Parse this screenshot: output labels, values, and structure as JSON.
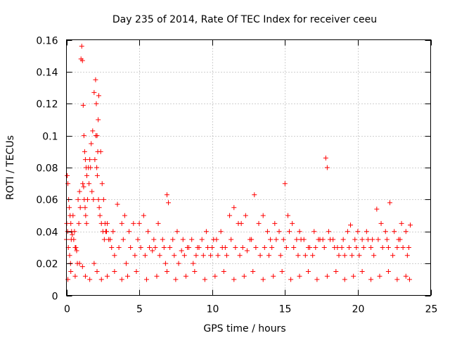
{
  "chart_data": {
    "type": "scatter",
    "title": "Day 235 of 2014, Rate Of TEC Index for receiver ceeu",
    "xlabel": "GPS time / hours",
    "ylabel": "ROTI / TECUs",
    "xlim": [
      0,
      25
    ],
    "ylim": [
      0,
      0.16
    ],
    "xticks": [
      0,
      5,
      10,
      15,
      20,
      25
    ],
    "xtick_labels": [
      "0",
      "5",
      "10",
      "15",
      "20",
      "25"
    ],
    "yticks": [
      0,
      0.02,
      0.04,
      0.06,
      0.08,
      0.1,
      0.12,
      0.14,
      0.16
    ],
    "ytick_labels": [
      "0",
      "0.02",
      "0.04",
      "0.06",
      "0.08",
      "0.1",
      "0.12",
      "0.14",
      "0.16"
    ],
    "grid": true,
    "marker": "+",
    "color": "#ff0000",
    "series": [
      {
        "name": "ROTI",
        "x": [
          0.0,
          0.05,
          0.1,
          0.15,
          0.2,
          0.25,
          0.3,
          0.35,
          0.4,
          0.5,
          0.6,
          0.7,
          0.8,
          0.9,
          1.0,
          1.05,
          1.1,
          1.15,
          1.2,
          1.25,
          1.3,
          1.35,
          1.4,
          1.5,
          1.6,
          1.7,
          1.8,
          1.9,
          2.0,
          2.05,
          2.1,
          2.15,
          2.2,
          2.25,
          2.3,
          2.4,
          2.5,
          2.6,
          2.7,
          2.8,
          3.0,
          3.2,
          3.5,
          3.8,
          4.0,
          4.3,
          4.6,
          5.0,
          5.3,
          5.6,
          6.0,
          6.3,
          6.6,
          6.9,
          7.0,
          7.3,
          7.6,
          8.0,
          8.3,
          8.6,
          9.0,
          9.3,
          9.6,
          10.0,
          10.3,
          10.6,
          10.9,
          11.2,
          11.5,
          11.8,
          12.0,
          12.3,
          12.6,
          12.9,
          13.2,
          13.5,
          13.8,
          14.0,
          14.3,
          14.6,
          14.9,
          15.0,
          15.2,
          15.5,
          15.8,
          16.0,
          16.3,
          16.6,
          17.0,
          17.3,
          17.6,
          17.8,
          18.0,
          18.3,
          18.6,
          19.0,
          19.3,
          19.5,
          19.8,
          20.0,
          20.3,
          20.6,
          21.0,
          21.3,
          21.6,
          22.0,
          22.2,
          22.5,
          22.8,
          23.0,
          23.3,
          23.6,
          0.02,
          0.08,
          0.13,
          0.22,
          0.28,
          0.33,
          0.45,
          0.55,
          0.65,
          0.75,
          0.85,
          0.95,
          1.12,
          1.18,
          1.22,
          1.28,
          1.32,
          1.38,
          1.45,
          1.55,
          1.65,
          1.75,
          1.85,
          1.95,
          2.02,
          2.08,
          2.12,
          2.18,
          2.22,
          2.35,
          2.45,
          2.55,
          2.65,
          2.75,
          2.9,
          3.1,
          3.3,
          3.6,
          3.9,
          4.1,
          4.4,
          4.7,
          4.9,
          5.1,
          5.4,
          5.7,
          5.9,
          6.1,
          6.4,
          6.7,
          6.8,
          7.1,
          7.4,
          7.7,
          7.9,
          8.1,
          8.4,
          8.7,
          8.9,
          9.1,
          9.4,
          9.7,
          9.9,
          10.1,
          10.4,
          10.7,
          11.0,
          11.3,
          11.6,
          11.9,
          12.1,
          12.4,
          12.7,
          13.0,
          13.3,
          13.6,
          13.9,
          14.1,
          14.4,
          14.7,
          15.1,
          15.3,
          15.6,
          15.9,
          16.1,
          16.4,
          16.7,
          16.9,
          17.1,
          17.4,
          17.7,
          17.9,
          18.1,
          18.4,
          18.7,
          18.9,
          19.1,
          19.4,
          19.6,
          19.9,
          20.1,
          20.4,
          20.7,
          20.9,
          21.1,
          21.4,
          21.7,
          21.9,
          22.1,
          22.4,
          22.7,
          22.9,
          23.1,
          23.4,
          23.5,
          0.1,
          0.3,
          0.6,
          0.9,
          1.1,
          1.3,
          1.6,
          1.9,
          2.1,
          2.4,
          2.8,
          3.3,
          3.8,
          4.2,
          4.8,
          5.5,
          6.2,
          6.9,
          7.5,
          8.2,
          8.8,
          9.5,
          10.2,
          10.8,
          11.5,
          12.2,
          12.8,
          13.5,
          14.2,
          14.8,
          15.4,
          16.0,
          16.6,
          17.2,
          17.9,
          18.5,
          19.1,
          19.7,
          20.3,
          20.9,
          21.5,
          22.1,
          22.7,
          23.3,
          23.55
        ],
        "y": [
          0.035,
          0.075,
          0.07,
          0.06,
          0.055,
          0.05,
          0.045,
          0.04,
          0.038,
          0.035,
          0.03,
          0.028,
          0.06,
          0.065,
          0.148,
          0.156,
          0.147,
          0.119,
          0.1,
          0.09,
          0.085,
          0.08,
          0.075,
          0.08,
          0.085,
          0.095,
          0.103,
          0.127,
          0.135,
          0.12,
          0.1,
          0.09,
          0.06,
          0.055,
          0.05,
          0.045,
          0.04,
          0.035,
          0.04,
          0.045,
          0.035,
          0.04,
          0.057,
          0.045,
          0.05,
          0.04,
          0.045,
          0.045,
          0.05,
          0.04,
          0.035,
          0.045,
          0.035,
          0.063,
          0.058,
          0.035,
          0.04,
          0.035,
          0.03,
          0.035,
          0.03,
          0.035,
          0.04,
          0.03,
          0.035,
          0.04,
          0.03,
          0.05,
          0.055,
          0.045,
          0.045,
          0.05,
          0.035,
          0.063,
          0.045,
          0.05,
          0.04,
          0.035,
          0.045,
          0.04,
          0.035,
          0.07,
          0.05,
          0.045,
          0.035,
          0.04,
          0.035,
          0.03,
          0.04,
          0.035,
          0.035,
          0.086,
          0.04,
          0.035,
          0.03,
          0.035,
          0.04,
          0.044,
          0.035,
          0.04,
          0.035,
          0.04,
          0.035,
          0.054,
          0.045,
          0.035,
          0.058,
          0.04,
          0.035,
          0.045,
          0.04,
          0.044,
          0.045,
          0.04,
          0.03,
          0.025,
          0.02,
          0.035,
          0.05,
          0.04,
          0.03,
          0.02,
          0.045,
          0.055,
          0.07,
          0.068,
          0.06,
          0.055,
          0.05,
          0.045,
          0.06,
          0.07,
          0.08,
          0.065,
          0.06,
          0.085,
          0.1,
          0.08,
          0.075,
          0.11,
          0.125,
          0.09,
          0.07,
          0.06,
          0.045,
          0.04,
          0.035,
          0.03,
          0.025,
          0.03,
          0.035,
          0.02,
          0.03,
          0.025,
          0.035,
          0.03,
          0.025,
          0.03,
          0.028,
          0.03,
          0.025,
          0.03,
          0.02,
          0.03,
          0.025,
          0.02,
          0.028,
          0.025,
          0.03,
          0.02,
          0.025,
          0.03,
          0.025,
          0.03,
          0.025,
          0.035,
          0.025,
          0.03,
          0.025,
          0.035,
          0.03,
          0.025,
          0.03,
          0.028,
          0.035,
          0.03,
          0.025,
          0.03,
          0.025,
          0.03,
          0.035,
          0.025,
          0.03,
          0.04,
          0.03,
          0.025,
          0.035,
          0.025,
          0.03,
          0.025,
          0.03,
          0.035,
          0.03,
          0.08,
          0.035,
          0.03,
          0.025,
          0.03,
          0.025,
          0.03,
          0.025,
          0.03,
          0.025,
          0.03,
          0.035,
          0.03,
          0.025,
          0.035,
          0.03,
          0.04,
          0.03,
          0.025,
          0.03,
          0.035,
          0.03,
          0.025,
          0.03,
          0.01,
          0.015,
          0.012,
          0.02,
          0.018,
          0.012,
          0.01,
          0.02,
          0.015,
          0.01,
          0.012,
          0.015,
          0.01,
          0.012,
          0.015,
          0.01,
          0.012,
          0.015,
          0.01,
          0.012,
          0.015,
          0.01,
          0.012,
          0.015,
          0.01,
          0.012,
          0.015,
          0.01,
          0.012,
          0.015,
          0.01,
          0.012,
          0.015,
          0.01,
          0.012,
          0.015,
          0.01,
          0.012,
          0.015,
          0.01,
          0.012,
          0.015,
          0.01,
          0.012,
          0.01
        ]
      }
    ]
  }
}
